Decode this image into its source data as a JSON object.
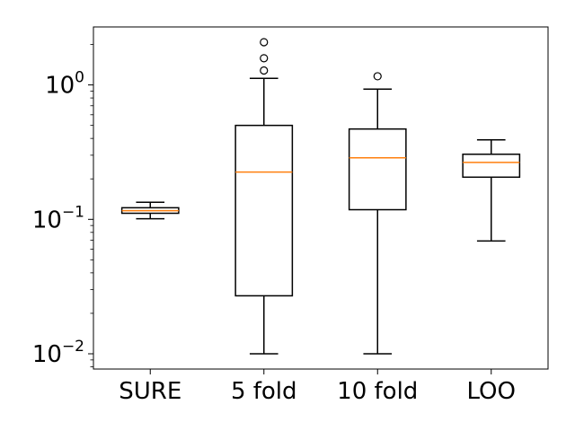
{
  "chart_data": {
    "type": "boxplot",
    "title": "",
    "xlabel": "",
    "ylabel": "",
    "yscale": "log",
    "ylim": [
      0.0077,
      2.7
    ],
    "y_ticks": [
      {
        "value": 1,
        "base": "10",
        "exp": "0"
      },
      {
        "value": 0.1,
        "base": "10",
        "exp": "−1"
      },
      {
        "value": 0.01,
        "base": "10",
        "exp": "−2"
      }
    ],
    "grid": false,
    "legend": "none",
    "median_color": "#ff7f0e",
    "box_color": "#000000",
    "categories": [
      "SURE",
      "5 fold",
      "10 fold",
      "LOO"
    ],
    "boxes": [
      {
        "label": "SURE",
        "whisker_low": 0.101,
        "q1": 0.111,
        "median": 0.116,
        "q3": 0.122,
        "whisker_high": 0.134,
        "outliers": []
      },
      {
        "label": "5 fold",
        "whisker_low": 0.01,
        "q1": 0.027,
        "median": 0.225,
        "q3": 0.5,
        "whisker_high": 1.12,
        "outliers": [
          1.28,
          1.58,
          2.08
        ]
      },
      {
        "label": "10 fold",
        "whisker_low": 0.01,
        "q1": 0.118,
        "median": 0.287,
        "q3": 0.47,
        "whisker_high": 0.93,
        "outliers": [
          1.16
        ]
      },
      {
        "label": "LOO",
        "whisker_low": 0.069,
        "q1": 0.206,
        "median": 0.265,
        "q3": 0.305,
        "whisker_high": 0.39,
        "outliers": []
      }
    ]
  }
}
